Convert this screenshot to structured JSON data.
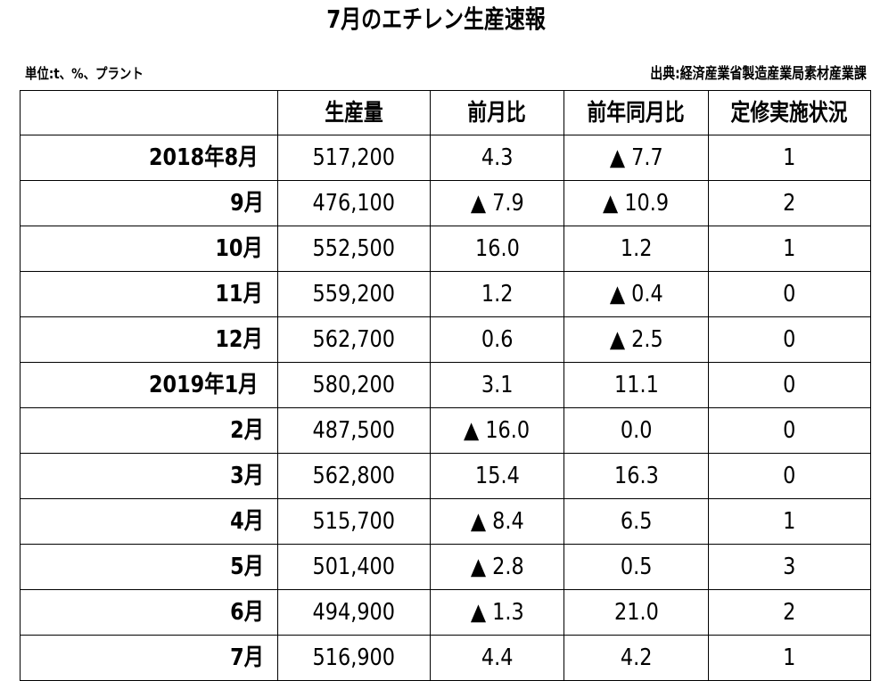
{
  "title": "7月のエチレン生産速報",
  "unit_note": "単位:t、%、プラント",
  "source_note": "出典:経済産業省製造産業局素材産業課",
  "table": {
    "headers": [
      "",
      "生産量",
      "前月比",
      "前年同月比",
      "定修実施状況"
    ],
    "rows": [
      {
        "month": "2018年8月",
        "production": "517,200",
        "mom": "4.3",
        "yoy": "▲ 7.7",
        "maintenance": "1"
      },
      {
        "month": "9月",
        "production": "476,100",
        "mom": "▲ 7.9",
        "yoy": "▲ 10.9",
        "maintenance": "2"
      },
      {
        "month": "10月",
        "production": "552,500",
        "mom": "16.0",
        "yoy": "1.2",
        "maintenance": "1"
      },
      {
        "month": "11月",
        "production": "559,200",
        "mom": "1.2",
        "yoy": "▲ 0.4",
        "maintenance": "0"
      },
      {
        "month": "12月",
        "production": "562,700",
        "mom": "0.6",
        "yoy": "▲ 2.5",
        "maintenance": "0"
      },
      {
        "month": "2019年1月",
        "production": "580,200",
        "mom": "3.1",
        "yoy": "11.1",
        "maintenance": "0"
      },
      {
        "month": "2月",
        "production": "487,500",
        "mom": "▲ 16.0",
        "yoy": "0.0",
        "maintenance": "0"
      },
      {
        "month": "3月",
        "production": "562,800",
        "mom": "15.4",
        "yoy": "16.3",
        "maintenance": "0"
      },
      {
        "month": "4月",
        "production": "515,700",
        "mom": "▲ 8.4",
        "yoy": "6.5",
        "maintenance": "1"
      },
      {
        "month": "5月",
        "production": "501,400",
        "mom": "▲ 2.8",
        "yoy": "0.5",
        "maintenance": "3"
      },
      {
        "month": "6月",
        "production": "494,900",
        "mom": "▲ 1.3",
        "yoy": "21.0",
        "maintenance": "2"
      },
      {
        "month": "7月",
        "production": "516,900",
        "mom": "4.4",
        "yoy": "4.2",
        "maintenance": "1"
      }
    ]
  }
}
